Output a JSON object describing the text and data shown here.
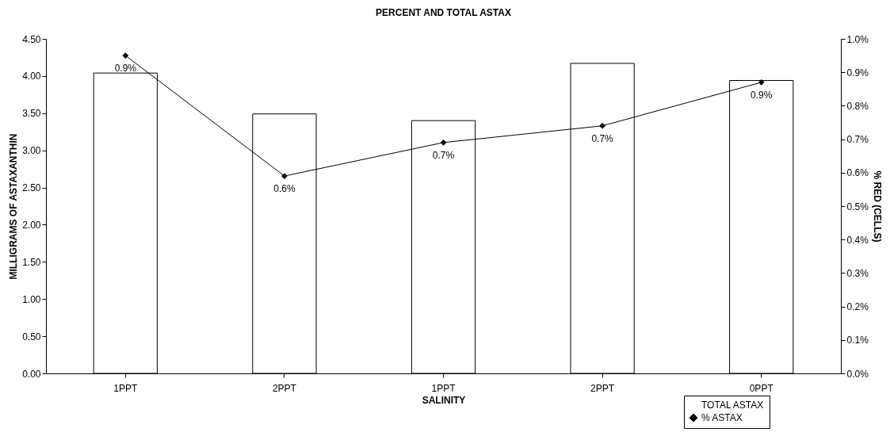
{
  "chart_data": {
    "type": "bar",
    "title": "PERCENT AND TOTAL ASTAX",
    "xlabel": "SALINITY",
    "ylabel": "MILLIGRAMS OF ASTAXANTHIN",
    "y2label": "% RED (CELLS)",
    "categories": [
      "1PPT",
      "2PPT",
      "1PPT",
      "2PPT",
      "0PPT"
    ],
    "series": [
      {
        "name": "TOTAL ASTAX",
        "color": "#ffffff",
        "values": [
          4.04,
          3.49,
          3.4,
          4.17,
          3.94
        ]
      },
      {
        "name": "% ASTAX",
        "type": "line",
        "axis": "y2",
        "color": "#000000",
        "marker": "diamond",
        "line_style": "solid",
        "values": [
          0.95,
          0.59,
          0.69,
          0.74,
          0.87
        ],
        "value_labels": [
          "0.9%",
          "0.6%",
          "0.7%",
          "0.7%",
          "0.9%"
        ]
      }
    ],
    "ylim": [
      0,
      4.5
    ],
    "yticks": [
      {
        "value": 0,
        "label": "0.00"
      },
      {
        "value": 0.5,
        "label": "0.50"
      },
      {
        "value": 1,
        "label": "1.00"
      },
      {
        "value": 1.5,
        "label": "1.50"
      },
      {
        "value": 2,
        "label": "2.00"
      },
      {
        "value": 2.5,
        "label": "2.50"
      },
      {
        "value": 3,
        "label": "3.00"
      },
      {
        "value": 3.5,
        "label": "3.50"
      },
      {
        "value": 4,
        "label": "4.00"
      },
      {
        "value": 4.5,
        "label": "4.50"
      }
    ],
    "y2lim": [
      0,
      1
    ],
    "y2ticks": [
      {
        "value": 0,
        "label": "0.0%"
      },
      {
        "value": 0.1,
        "label": "0.1%"
      },
      {
        "value": 0.2,
        "label": "0.2%"
      },
      {
        "value": 0.3,
        "label": "0.3%"
      },
      {
        "value": 0.4,
        "label": "0.4%"
      },
      {
        "value": 0.5,
        "label": "0.5%"
      },
      {
        "value": 0.6,
        "label": "0.6%"
      },
      {
        "value": 0.7,
        "label": "0.7%"
      },
      {
        "value": 0.8,
        "label": "0.8%"
      },
      {
        "value": 0.9,
        "label": "0.9%"
      },
      {
        "value": 1,
        "label": "1.0%"
      }
    ],
    "grid": false,
    "legend": "bottom right"
  }
}
